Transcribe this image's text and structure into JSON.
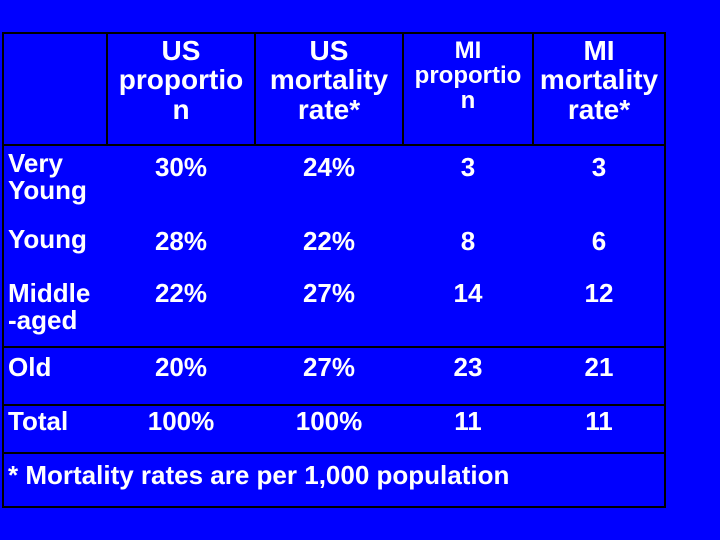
{
  "table": {
    "headers": [
      "US\nproportio\nn",
      "US\nmortality\nrate*",
      "MI\nproportio\nn",
      "MI\nmortality\nrate*"
    ],
    "rows": [
      {
        "label": "Very\nYoung",
        "values": [
          "30%",
          "24%",
          "3",
          "3"
        ]
      },
      {
        "label": "Young",
        "values": [
          "28%",
          "22%",
          "8",
          "6"
        ]
      },
      {
        "label": "Middle\n-aged",
        "values": [
          "22%",
          "27%",
          "14",
          "12"
        ]
      },
      {
        "label": "Old",
        "values": [
          "20%",
          "27%",
          "23",
          "21"
        ]
      },
      {
        "label": "Total",
        "values": [
          "100%",
          "100%",
          "11",
          "11"
        ]
      }
    ],
    "footnote": "* Mortality rates are per 1,000 population"
  },
  "colors": {
    "background": "#0000ff",
    "text": "#ffffff",
    "border": "#000000"
  }
}
